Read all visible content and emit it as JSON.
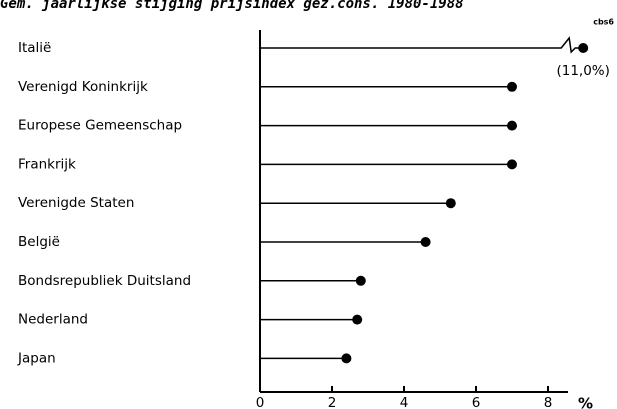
{
  "chart_data": {
    "type": "lollipop",
    "title": "Gem. jaarlijkse stijging prijsindex gez.cons. 1980-1988",
    "source": "cbs6",
    "categories": [
      "Italië",
      "Verenigd Koninkrijk",
      "Europese Gemeenschap",
      "Frankrijk",
      "Verenigde Staten",
      "België",
      "Bondsrepubliek Duitsland",
      "Nederland",
      "Japan"
    ],
    "values": [
      11.0,
      7.0,
      7.0,
      7.0,
      5.3,
      4.6,
      2.8,
      2.7,
      2.4
    ],
    "value_labels": [
      "(11,0%)",
      null,
      null,
      null,
      null,
      null,
      null,
      null,
      null
    ],
    "x_label": "%",
    "xlim": [
      0,
      9.2
    ],
    "xticks": [
      0,
      2,
      4,
      6,
      8
    ],
    "axis_break": true,
    "color": "#000000"
  }
}
